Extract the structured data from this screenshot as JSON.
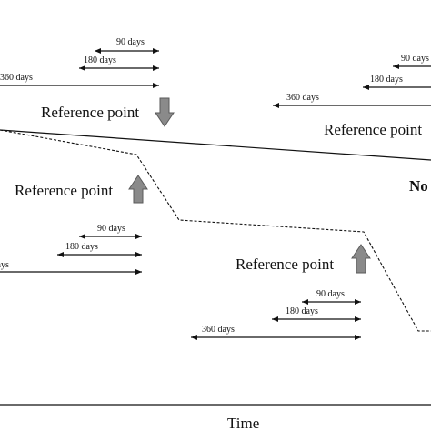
{
  "labels": {
    "reference_point": "Reference point",
    "d90": "90 days",
    "d180": "180 days",
    "d360": "360 days",
    "no_label": "No",
    "x_axis": "Time"
  },
  "colors": {
    "arrow_fill": "#8a8a8a",
    "arrow_stroke": "#5a5a5a",
    "line": "#111111"
  },
  "icons": {
    "reference_down": "down-arrow-icon",
    "reference_up": "up-arrow-icon"
  }
}
